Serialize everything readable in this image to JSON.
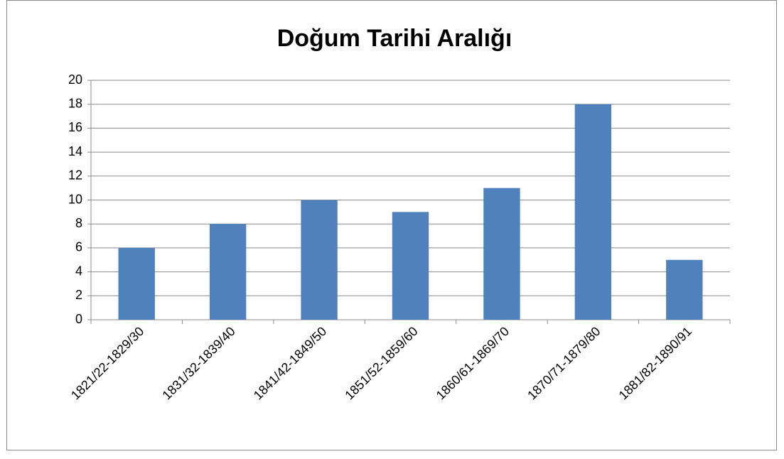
{
  "chart_data": {
    "type": "bar",
    "title": "Doğum Tarihi Aralığı",
    "categories": [
      "1821/22-1829/30",
      "1831/32-1839/40",
      "1841/42-1849/50",
      "1851/52-1859/60",
      "1860/61-1869/70",
      "1870/71-1879/80",
      "1881/82-1890/91"
    ],
    "values": [
      6,
      8,
      10,
      9,
      11,
      18,
      5
    ],
    "color": "#4f81bd",
    "ylim": [
      0,
      20
    ],
    "yticks": [
      0,
      2,
      4,
      6,
      8,
      10,
      12,
      14,
      16,
      18,
      20
    ],
    "grid": true
  }
}
